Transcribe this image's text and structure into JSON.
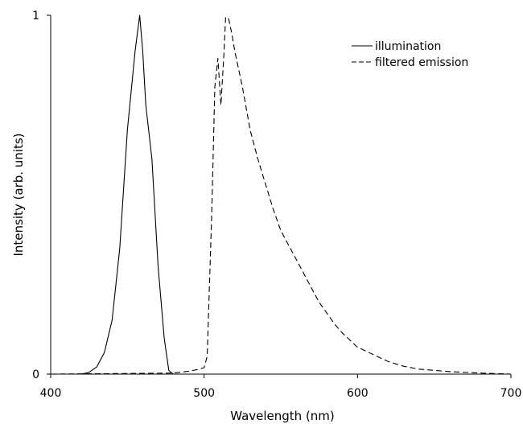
{
  "chart_data": {
    "type": "line",
    "title": "",
    "xlabel": "Wavelength (nm)",
    "ylabel": "Intensity (arb. units)",
    "xlim": [
      400,
      700
    ],
    "ylim": [
      0,
      1
    ],
    "x_ticks": [
      "400",
      "500",
      "600",
      "700"
    ],
    "y_ticks": [
      "0",
      "1"
    ],
    "grid": false,
    "legend_position": "top-right",
    "series": [
      {
        "name": "illumination",
        "style": "solid",
        "color": "#000000",
        "points": [
          [
            400,
            0
          ],
          [
            420,
            0
          ],
          [
            425,
            0.005
          ],
          [
            430,
            0.02
          ],
          [
            435,
            0.06
          ],
          [
            440,
            0.15
          ],
          [
            445,
            0.35
          ],
          [
            450,
            0.68
          ],
          [
            455,
            0.9
          ],
          [
            458,
            1.0
          ],
          [
            460,
            0.9
          ],
          [
            462,
            0.75
          ],
          [
            466,
            0.6
          ],
          [
            470,
            0.3
          ],
          [
            474,
            0.1
          ],
          [
            477,
            0.01
          ],
          [
            480,
            0
          ],
          [
            500,
            0
          ],
          [
            700,
            0
          ]
        ]
      },
      {
        "name": "filtered emission",
        "style": "dashed",
        "color": "#000000",
        "points": [
          [
            400,
            0
          ],
          [
            480,
            0.003
          ],
          [
            490,
            0.008
          ],
          [
            495,
            0.012
          ],
          [
            500,
            0.018
          ],
          [
            502,
            0.05
          ],
          [
            505,
            0.45
          ],
          [
            507,
            0.8
          ],
          [
            509,
            0.88
          ],
          [
            511,
            0.75
          ],
          [
            513,
            0.9
          ],
          [
            514,
            0.995
          ],
          [
            516,
            0.99
          ],
          [
            518,
            0.95
          ],
          [
            520,
            0.9
          ],
          [
            525,
            0.8
          ],
          [
            530,
            0.68
          ],
          [
            535,
            0.6
          ],
          [
            540,
            0.53
          ],
          [
            545,
            0.46
          ],
          [
            550,
            0.4
          ],
          [
            555,
            0.36
          ],
          [
            560,
            0.32
          ],
          [
            565,
            0.28
          ],
          [
            570,
            0.24
          ],
          [
            575,
            0.2
          ],
          [
            580,
            0.17
          ],
          [
            585,
            0.14
          ],
          [
            590,
            0.115
          ],
          [
            595,
            0.095
          ],
          [
            600,
            0.075
          ],
          [
            605,
            0.065
          ],
          [
            610,
            0.055
          ],
          [
            620,
            0.035
          ],
          [
            630,
            0.022
          ],
          [
            640,
            0.014
          ],
          [
            660,
            0.007
          ],
          [
            680,
            0.003
          ],
          [
            700,
            0
          ]
        ]
      }
    ]
  }
}
